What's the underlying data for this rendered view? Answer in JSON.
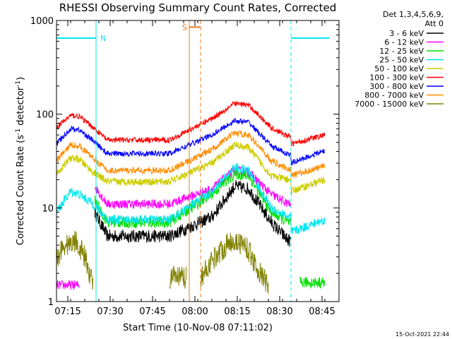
{
  "chart_data": {
    "type": "line",
    "title": "RHESSI Observing Summary Count Rates, Corrected",
    "xlabel": "Start Time (10-Nov-08 07:11:02)",
    "ylabel": "Corrected Count Rate (s",
    "ylabel_sup1": "-1",
    "ylabel_mid": " detector",
    "ylabel_sup2": "-1",
    "ylabel_end": ")",
    "xlim": [
      0,
      100
    ],
    "x_ticks": [
      {
        "minutes": 4,
        "label": "07:15"
      },
      {
        "minutes": 19,
        "label": "07:30"
      },
      {
        "minutes": 34,
        "label": "07:45"
      },
      {
        "minutes": 49,
        "label": "08:00"
      },
      {
        "minutes": 64,
        "label": "08:15"
      },
      {
        "minutes": 79,
        "label": "08:30"
      },
      {
        "minutes": 94,
        "label": "08:45"
      }
    ],
    "y_scale": "log",
    "ylim": [
      1,
      1000
    ],
    "y_ticks": [
      {
        "value": 1,
        "label": "1"
      },
      {
        "value": 10,
        "label": "10"
      },
      {
        "value": 100,
        "label": "100"
      },
      {
        "value": 1000,
        "label": "1000"
      }
    ],
    "legend_header_1": "Det 1,3,4,5,6,9,",
    "legend_header_2": "Att 0",
    "legend_position": "top-right outside plot",
    "night_marker": {
      "label": "N",
      "color": "#00e5ee",
      "start": 14,
      "end": 83,
      "level": 650
    },
    "saa_marker": {
      "label": "S",
      "color": "#e87d1e",
      "start": 47,
      "end": 51,
      "level": 850
    },
    "series": [
      {
        "name": "3 - 6 keV",
        "color": "#000000",
        "base": [
          [
            0,
            null
          ],
          [
            13,
            null
          ],
          [
            13.5,
            9
          ],
          [
            18,
            5
          ],
          [
            40,
            5
          ],
          [
            55,
            8
          ],
          [
            63,
            17
          ],
          [
            68,
            16
          ],
          [
            76,
            7
          ],
          [
            82,
            4.5
          ],
          [
            83,
            4.5
          ]
        ],
        "noise": 0.07
      },
      {
        "name": "6 - 12 keV",
        "color": "#ff00ff",
        "base": [
          [
            0,
            1.5
          ],
          [
            8,
            1.5
          ],
          [
            8,
            null
          ],
          [
            13,
            null
          ],
          [
            13.5,
            17
          ],
          [
            18,
            11
          ],
          [
            40,
            11
          ],
          [
            55,
            16
          ],
          [
            63,
            25
          ],
          [
            68,
            24
          ],
          [
            76,
            14
          ],
          [
            82,
            11
          ],
          [
            83,
            11
          ]
        ],
        "noise": 0.05
      },
      {
        "name": "12 - 25 keV",
        "color": "#00dd00",
        "base": [
          [
            0,
            null
          ],
          [
            13,
            null
          ],
          [
            13.5,
            12
          ],
          [
            18,
            7
          ],
          [
            40,
            7
          ],
          [
            55,
            14
          ],
          [
            63,
            23
          ],
          [
            68,
            22
          ],
          [
            76,
            9
          ],
          [
            82,
            7
          ],
          [
            83,
            7
          ],
          [
            83,
            null
          ],
          [
            86,
            null
          ],
          [
            86,
            1.6
          ],
          [
            95,
            1.6
          ]
        ],
        "noise": 0.06
      },
      {
        "name": "25 - 50 keV",
        "color": "#00e5ee",
        "base": [
          [
            0,
            9
          ],
          [
            5,
            15
          ],
          [
            8,
            14
          ],
          [
            13,
            11
          ],
          [
            18,
            7.5
          ],
          [
            40,
            7.5
          ],
          [
            55,
            15
          ],
          [
            63,
            27
          ],
          [
            68,
            25
          ],
          [
            76,
            10
          ],
          [
            82,
            8
          ],
          [
            83,
            8
          ],
          [
            83,
            5.5
          ],
          [
            95,
            7.5
          ]
        ],
        "noise": 0.05
      },
      {
        "name": "50 - 100 keV",
        "color": "#cccc00",
        "base": [
          [
            0,
            23
          ],
          [
            5,
            34
          ],
          [
            8,
            33
          ],
          [
            13,
            24
          ],
          [
            18,
            19
          ],
          [
            40,
            19
          ],
          [
            55,
            30
          ],
          [
            63,
            47
          ],
          [
            68,
            44
          ],
          [
            76,
            22
          ],
          [
            82,
            20
          ],
          [
            83,
            20
          ],
          [
            83,
            15
          ],
          [
            95,
            20
          ]
        ],
        "noise": 0.04
      },
      {
        "name": "100 - 300 keV",
        "color": "#ff0000",
        "base": [
          [
            0,
            72
          ],
          [
            5,
            97
          ],
          [
            8,
            95
          ],
          [
            13,
            72
          ],
          [
            18,
            53
          ],
          [
            40,
            53
          ],
          [
            55,
            90
          ],
          [
            63,
            130
          ],
          [
            68,
            125
          ],
          [
            76,
            72
          ],
          [
            82,
            58
          ],
          [
            83,
            58
          ],
          [
            83,
            48
          ],
          [
            95,
            60
          ]
        ],
        "noise": 0.03
      },
      {
        "name": "300 - 800 keV",
        "color": "#0000ff",
        "base": [
          [
            0,
            48
          ],
          [
            5,
            70
          ],
          [
            8,
            68
          ],
          [
            13,
            52
          ],
          [
            18,
            38
          ],
          [
            40,
            38
          ],
          [
            55,
            60
          ],
          [
            63,
            85
          ],
          [
            68,
            82
          ],
          [
            76,
            46
          ],
          [
            82,
            37
          ],
          [
            83,
            37
          ],
          [
            83,
            30
          ],
          [
            95,
            41
          ]
        ],
        "noise": 0.03
      },
      {
        "name": "800 - 7000 keV",
        "color": "#ff8c00",
        "base": [
          [
            0,
            32
          ],
          [
            5,
            47
          ],
          [
            8,
            46
          ],
          [
            13,
            34
          ],
          [
            18,
            25
          ],
          [
            40,
            25
          ],
          [
            55,
            42
          ],
          [
            63,
            63
          ],
          [
            68,
            60
          ],
          [
            76,
            32
          ],
          [
            82,
            26
          ],
          [
            83,
            26
          ],
          [
            83,
            22
          ],
          [
            95,
            28
          ]
        ],
        "noise": 0.035
      },
      {
        "name": "7000 - 15000 keV",
        "color": "#808000",
        "base": [
          [
            0,
            2.8
          ],
          [
            2,
            3.8
          ],
          [
            7,
            4.5
          ],
          [
            10,
            3
          ],
          [
            13,
            1.5
          ],
          [
            13.2,
            null
          ],
          [
            40,
            null
          ],
          [
            40,
            1.8
          ],
          [
            46,
            1.8
          ],
          [
            48,
            null
          ],
          [
            51,
            null
          ],
          [
            51,
            1.8
          ],
          [
            56,
            3
          ],
          [
            62,
            4.5
          ],
          [
            67,
            4
          ],
          [
            72,
            2
          ],
          [
            75,
            1.5
          ],
          [
            76,
            null
          ],
          [
            95,
            null
          ]
        ],
        "noise": 0.12
      }
    ]
  },
  "timestamp": "15-Oct-2021 22:44"
}
